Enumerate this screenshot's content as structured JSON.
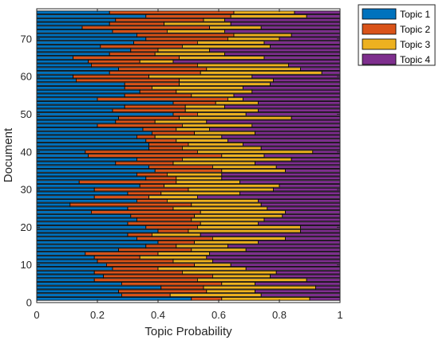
{
  "chart_data": {
    "type": "bar",
    "orientation": "horizontal",
    "stacked": true,
    "title": "",
    "xlabel": "Topic Probability",
    "ylabel": "Document",
    "xlim": [
      0,
      1
    ],
    "ylim": [
      0,
      78
    ],
    "xticks": [
      "0",
      "0.2",
      "0.4",
      "0.6",
      "0.8",
      "1"
    ],
    "yticks": [
      "0",
      "10",
      "20",
      "30",
      "40",
      "50",
      "60",
      "70"
    ],
    "grid": false,
    "legend_position": "top-right",
    "categories": [
      "1",
      "2",
      "3",
      "4",
      "5",
      "6",
      "7",
      "8",
      "9",
      "10",
      "11",
      "12",
      "13",
      "14",
      "15",
      "16",
      "17",
      "18",
      "19",
      "20",
      "21",
      "22",
      "23",
      "24",
      "25",
      "26",
      "27",
      "28",
      "29",
      "30",
      "31",
      "32",
      "33",
      "34",
      "35",
      "36",
      "37",
      "38",
      "39",
      "40",
      "41",
      "42",
      "43",
      "44",
      "45",
      "46",
      "47",
      "48",
      "49",
      "50",
      "51",
      "52",
      "53",
      "54",
      "55",
      "56",
      "57",
      "58",
      "59",
      "60",
      "61",
      "62",
      "63",
      "64",
      "65",
      "66",
      "67",
      "68",
      "69",
      "70",
      "71",
      "72",
      "73",
      "74",
      "75",
      "76",
      "77"
    ],
    "series": [
      {
        "name": "Topic 1",
        "color": "#0072BD",
        "values": [
          0.51,
          0.28,
          0.27,
          0.41,
          0.28,
          0.19,
          0.22,
          0.19,
          0.25,
          0.23,
          0.2,
          0.19,
          0.16,
          0.27,
          0.36,
          0.4,
          0.33,
          0.3,
          0.4,
          0.36,
          0.3,
          0.33,
          0.31,
          0.18,
          0.3,
          0.11,
          0.33,
          0.19,
          0.3,
          0.19,
          0.34,
          0.14,
          0.36,
          0.33,
          0.39,
          0.37,
          0.26,
          0.33,
          0.17,
          0.16,
          0.37,
          0.37,
          0.36,
          0.33,
          0.38,
          0.35,
          0.2,
          0.26,
          0.27,
          0.45,
          0.25,
          0.29,
          0.45,
          0.2,
          0.29,
          0.34,
          0.29,
          0.29,
          0.13,
          0.12,
          0.24,
          0.27,
          0.18,
          0.17,
          0.12,
          0.24,
          0.31,
          0.21,
          0.32,
          0.36,
          0.33,
          0.25,
          0.15,
          0.24,
          0.26,
          0.36,
          0.24
        ]
      },
      {
        "name": "Topic 2",
        "color": "#D95319",
        "values": [
          0.1,
          0.16,
          0.29,
          0.14,
          0.33,
          0.34,
          0.36,
          0.29,
          0.15,
          0.29,
          0.25,
          0.15,
          0.24,
          0.24,
          0.1,
          0.12,
          0.25,
          0.08,
          0.1,
          0.17,
          0.24,
          0.18,
          0.21,
          0.36,
          0.15,
          0.4,
          0.1,
          0.18,
          0.11,
          0.31,
          0.08,
          0.32,
          0.1,
          0.1,
          0.22,
          0.21,
          0.19,
          0.15,
          0.44,
          0.37,
          0.11,
          0.13,
          0.1,
          0.06,
          0.14,
          0.11,
          0.28,
          0.13,
          0.2,
          0.08,
          0.24,
          0.2,
          0.14,
          0.43,
          0.22,
          0.12,
          0.09,
          0.18,
          0.34,
          0.25,
          0.3,
          0.29,
          0.35,
          0.17,
          0.35,
          0.15,
          0.09,
          0.27,
          0.21,
          0.27,
          0.32,
          0.18,
          0.42,
          0.18,
          0.29,
          0.28,
          0.41
        ]
      },
      {
        "name": "Topic 3",
        "color": "#EDB120",
        "values": [
          0.29,
          0.3,
          0.16,
          0.37,
          0.11,
          0.36,
          0.19,
          0.31,
          0.29,
          0.12,
          0.13,
          0.22,
          0.17,
          0.18,
          0.17,
          0.21,
          0.24,
          0.16,
          0.37,
          0.34,
          0.19,
          0.24,
          0.29,
          0.28,
          0.31,
          0.23,
          0.3,
          0.16,
          0.26,
          0.28,
          0.38,
          0.21,
          0.15,
          0.18,
          0.21,
          0.21,
          0.27,
          0.36,
          0.14,
          0.38,
          0.26,
          0.18,
          0.17,
          0.22,
          0.2,
          0.11,
          0.23,
          0.17,
          0.37,
          0.16,
          0.24,
          0.13,
          0.14,
          0.05,
          0.14,
          0.25,
          0.3,
          0.3,
          0.31,
          0.34,
          0.4,
          0.31,
          0.3,
          0.11,
          0.28,
          0.23,
          0.17,
          0.29,
          0.22,
          0.17,
          0.19,
          0.19,
          0.17,
          0.22,
          0.07,
          0.25,
          0.2
        ]
      },
      {
        "name": "Topic 4",
        "color": "#7E2F8E",
        "values": [
          0.1,
          0.26,
          0.28,
          0.08,
          0.28,
          0.11,
          0.23,
          0.21,
          0.31,
          0.36,
          0.42,
          0.44,
          0.43,
          0.31,
          0.37,
          0.27,
          0.18,
          0.46,
          0.13,
          0.13,
          0.27,
          0.25,
          0.19,
          0.18,
          0.24,
          0.26,
          0.27,
          0.47,
          0.33,
          0.22,
          0.2,
          0.33,
          0.39,
          0.39,
          0.18,
          0.21,
          0.28,
          0.16,
          0.25,
          0.09,
          0.26,
          0.32,
          0.37,
          0.39,
          0.28,
          0.43,
          0.29,
          0.44,
          0.16,
          0.31,
          0.27,
          0.38,
          0.27,
          0.32,
          0.35,
          0.29,
          0.32,
          0.23,
          0.22,
          0.29,
          0.06,
          0.13,
          0.17,
          0.55,
          0.25,
          0.38,
          0.43,
          0.23,
          0.25,
          0.2,
          0.16,
          0.38,
          0.26,
          0.36,
          0.38,
          0.11,
          0.15
        ]
      }
    ]
  }
}
